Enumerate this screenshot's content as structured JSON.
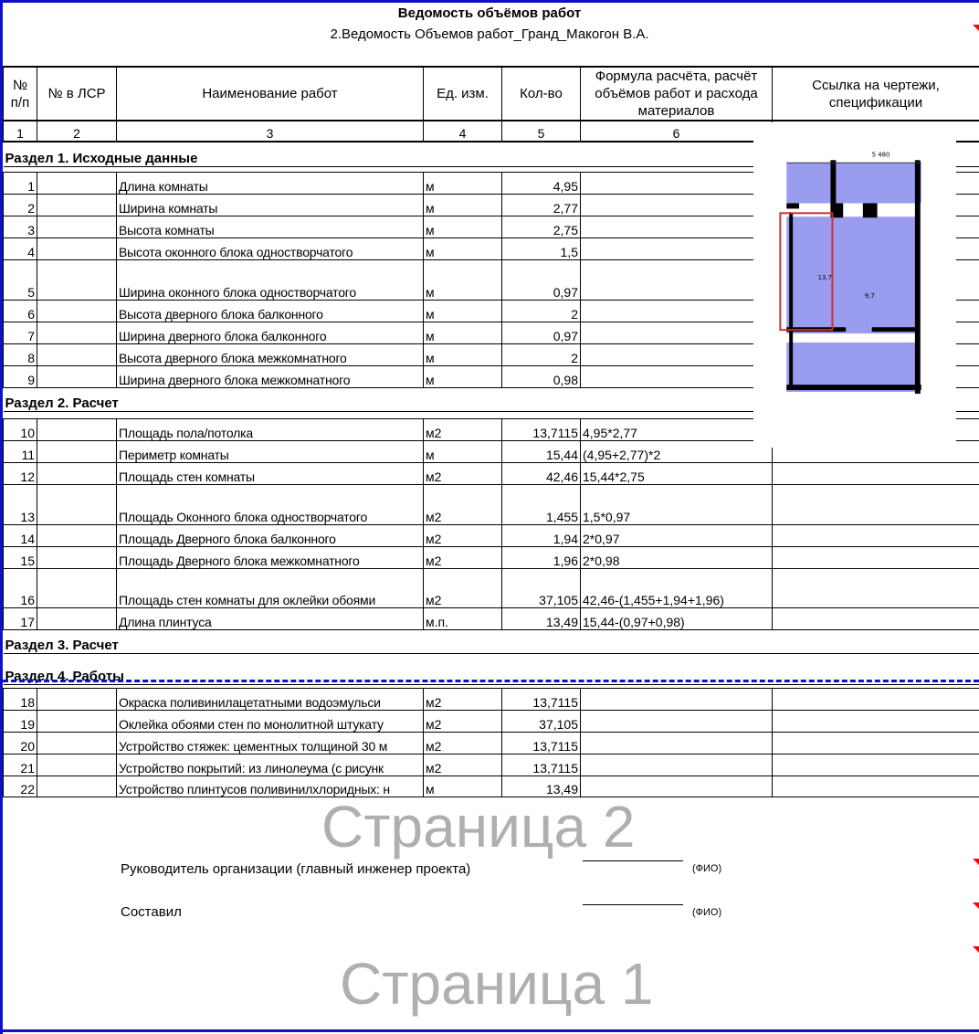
{
  "title": "Ведомость объёмов работ",
  "subtitle": "2.Ведомость Объемов работ_Гранд_Макогон В.А.",
  "headers": [
    "№ п/п",
    "№ в ЛСР",
    "Наименование работ",
    "Ед. изм.",
    "Кол-во",
    "Формула расчёта, расчёт объёмов работ и расхода материалов",
    "Ссылка на чертежи, спецификации"
  ],
  "col_numbers": [
    "1",
    "2",
    "3",
    "4",
    "5",
    "6",
    ""
  ],
  "sections": [
    "Раздел 1. Исходные данные",
    "Раздел 2. Расчет",
    "Раздел 3. Расчет",
    "Раздел 4. Работы"
  ],
  "rows": [
    {
      "n": "1",
      "name": "Длина комнаты",
      "unit": "м",
      "qty": "4,95",
      "formula": ""
    },
    {
      "n": "2",
      "name": "Ширина комнаты",
      "unit": "м",
      "qty": "2,77",
      "formula": ""
    },
    {
      "n": "3",
      "name": "Высота комнаты",
      "unit": "м",
      "qty": "2,75",
      "formula": ""
    },
    {
      "n": "4",
      "name": "Высота оконного блока  одностворчатого",
      "unit": "м",
      "qty": "1,5",
      "formula": ""
    },
    {
      "n": "5",
      "name": "Ширина оконного блока  одностворчатого",
      "unit": "м",
      "qty": "0,97",
      "formula": ""
    },
    {
      "n": "6",
      "name": "Высота дверного блока балконного",
      "unit": "м",
      "qty": "2",
      "formula": ""
    },
    {
      "n": "7",
      "name": "Ширина дверного блока балконного",
      "unit": "м",
      "qty": "0,97",
      "formula": ""
    },
    {
      "n": "8",
      "name": "Высота дверного блока межкомнатного",
      "unit": "м",
      "qty": "2",
      "formula": ""
    },
    {
      "n": "9",
      "name": "Ширина дверного блока межкомнатного",
      "unit": "м",
      "qty": "0,98",
      "formula": ""
    },
    {
      "n": "10",
      "name": "Площадь пола/потолка",
      "unit": "м2",
      "qty": "13,7115",
      "formula": "4,95*2,77"
    },
    {
      "n": "11",
      "name": "Периметр комнаты",
      "unit": "м",
      "qty": "15,44",
      "formula": "(4,95+2,77)*2"
    },
    {
      "n": "12",
      "name": "Площадь стен комнаты",
      "unit": "м2",
      "qty": "42,46",
      "formula": "15,44*2,75"
    },
    {
      "n": "13",
      "name": "Площадь Оконного блока одностворчатого",
      "unit": "м2",
      "qty": "1,455",
      "formula": "1,5*0,97"
    },
    {
      "n": "14",
      "name": "Площадь Дверного блока балконного",
      "unit": "м2",
      "qty": "1,94",
      "formula": "2*0,97"
    },
    {
      "n": "15",
      "name": "Площадь Дверного блока межкомнатного",
      "unit": "м2",
      "qty": "1,96",
      "formula": "2*0,98"
    },
    {
      "n": "16",
      "name": "Площадь стен комнаты для оклейки обоями",
      "unit": "м2",
      "qty": "37,105",
      "formula": "42,46-(1,455+1,94+1,96)"
    },
    {
      "n": "17",
      "name": "Длина плинтуса",
      "unit": "м.п.",
      "qty": "13,49",
      "formula": "15,44-(0,97+0,98)"
    },
    {
      "n": "18",
      "name": "Окраска поливинилацетатными водоэмульси",
      "unit": "м2",
      "qty": "13,7115",
      "formula": ""
    },
    {
      "n": "19",
      "name": "Оклейка обоями стен по монолитной штукату",
      "unit": "м2",
      "qty": "37,105",
      "formula": ""
    },
    {
      "n": "20",
      "name": "Устройство стяжек: цементных толщиной 30 м",
      "unit": "м2",
      "qty": "13,7115",
      "formula": ""
    },
    {
      "n": "21",
      "name": "Устройство покрытий: из линолеума (с рисунк",
      "unit": "м2",
      "qty": "13,7115",
      "formula": ""
    },
    {
      "n": "22",
      "name": "Устройство плинтусов поливинилхлоридных: н",
      "unit": "м",
      "qty": "13,49",
      "formula": ""
    }
  ],
  "watermarks": [
    "Страница 1",
    "Страница 2"
  ],
  "signatures": {
    "head": "Руководитель организации (главный инженер проекта)",
    "composer": "Составил",
    "fio": "(ФИО)"
  },
  "plan_labels": {
    "width": "5 480",
    "area": "13,7",
    "room": "9,7"
  },
  "colors": {
    "page_break": "#1010c8",
    "comment_marker": "#e01010",
    "plan_fill": "#9a9cf0",
    "highlight": "#c83030"
  }
}
